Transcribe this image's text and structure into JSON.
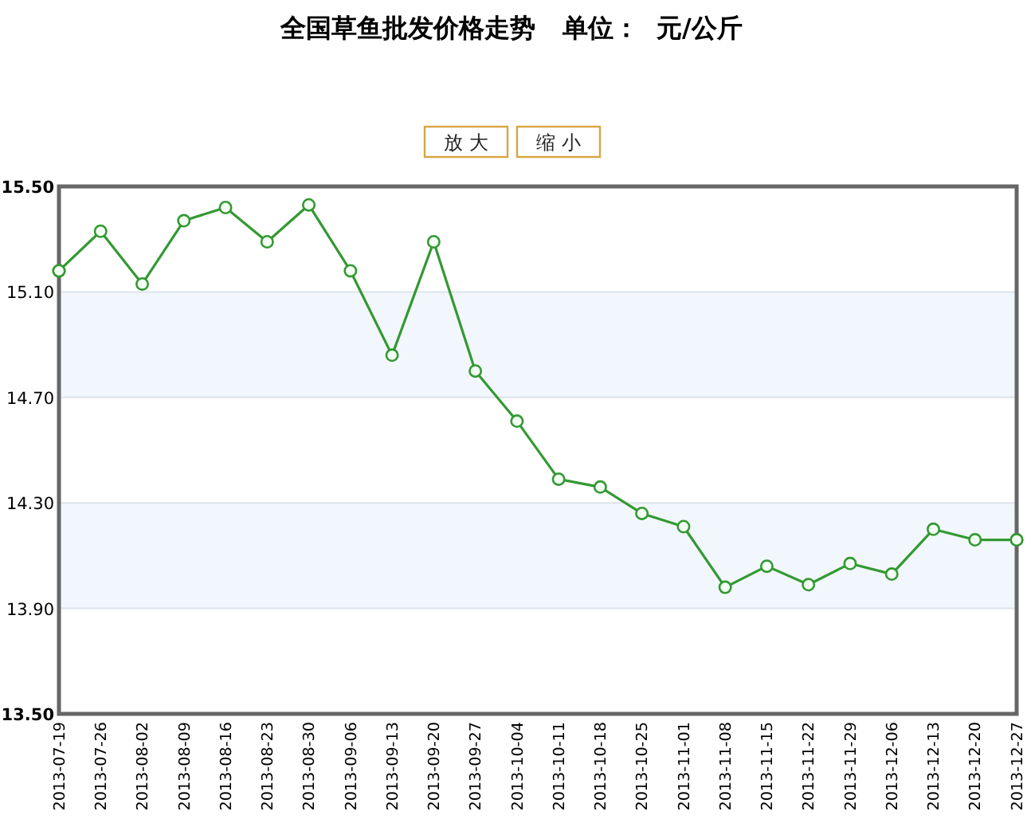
{
  "chart_data": {
    "type": "line",
    "title": "全国草鱼批发价格走势   单位：  元/公斤",
    "annotations": [
      "放 大",
      "缩 小"
    ],
    "categories": [
      "2013-07-19",
      "2013-07-26",
      "2013-08-02",
      "2013-08-09",
      "2013-08-16",
      "2013-08-23",
      "2013-08-30",
      "2013-09-06",
      "2013-09-13",
      "2013-09-20",
      "2013-09-27",
      "2013-10-04",
      "2013-10-11",
      "2013-10-18",
      "2013-10-25",
      "2013-11-01",
      "2013-11-08",
      "2013-11-15",
      "2013-11-22",
      "2013-11-29",
      "2013-12-06",
      "2013-12-13",
      "2013-12-20",
      "2013-12-27"
    ],
    "values": [
      15.18,
      15.33,
      15.13,
      15.37,
      15.42,
      15.29,
      15.43,
      15.18,
      14.86,
      15.29,
      14.8,
      14.61,
      14.39,
      14.36,
      14.26,
      14.21,
      13.98,
      14.06,
      13.99,
      14.07,
      14.03,
      14.2,
      14.16,
      14.16
    ],
    "color": "#339933",
    "marker": "circle",
    "line_style": "solid",
    "ylim": [
      13.5,
      15.5
    ],
    "yticks": [
      {
        "value": 15.5,
        "label": "15.50"
      },
      {
        "value": 15.1,
        "label": "15.10"
      },
      {
        "value": 14.7,
        "label": "14.70"
      },
      {
        "value": 14.3,
        "label": "14.30"
      },
      {
        "value": 13.9,
        "label": "13.90"
      },
      {
        "value": 13.5,
        "label": "13.50"
      }
    ],
    "grid": "y",
    "bands": [
      {
        "axis": "y",
        "from": 14.7,
        "to": 15.1,
        "color": "#f2f7fd"
      },
      {
        "axis": "y",
        "from": 13.9,
        "to": 14.3,
        "color": "#f2f7fd"
      }
    ]
  }
}
